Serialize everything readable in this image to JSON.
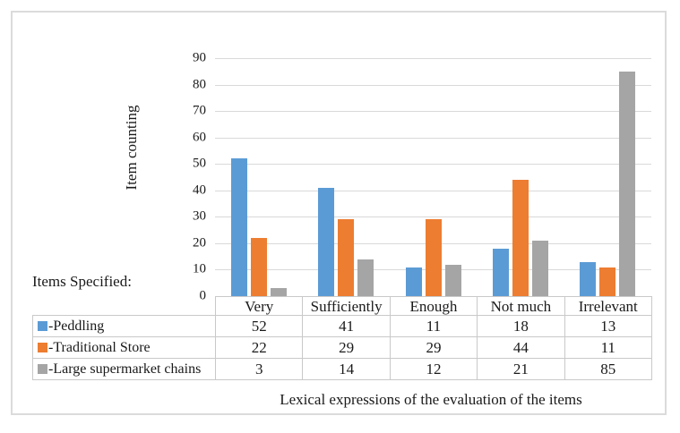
{
  "chart_data": {
    "type": "bar",
    "title": "",
    "categories": [
      "Very",
      "Sufficiently",
      "Enough",
      "Not much",
      "Irrelevant"
    ],
    "series": [
      {
        "name": "-Peddling",
        "color": "#5B9BD5",
        "values": [
          52,
          41,
          11,
          18,
          13
        ]
      },
      {
        "name": "-Traditional Store",
        "color": "#ED7D31",
        "values": [
          22,
          29,
          29,
          44,
          11
        ]
      },
      {
        "name": "-Large supermarket chains",
        "color": "#A5A5A5",
        "values": [
          3,
          14,
          12,
          21,
          85
        ]
      }
    ],
    "xlabel": "Lexical expressions of the evaluation of the items",
    "ylabel": "Item counting",
    "ylim": [
      0,
      90
    ],
    "ytick_step": 10,
    "yticks": [
      90,
      80,
      70,
      60,
      50,
      40,
      30,
      20,
      10,
      0
    ],
    "grid": true,
    "gridline_color": "#D9D9D9",
    "legend_position": "data-table-left"
  },
  "labels": {
    "items_specified": "Items Specified:"
  },
  "colors": {
    "frame_border": "#DBDBDB",
    "table_border": "#C9C9C9",
    "text": "#1A1A1A",
    "background": "#FFFFFF"
  }
}
